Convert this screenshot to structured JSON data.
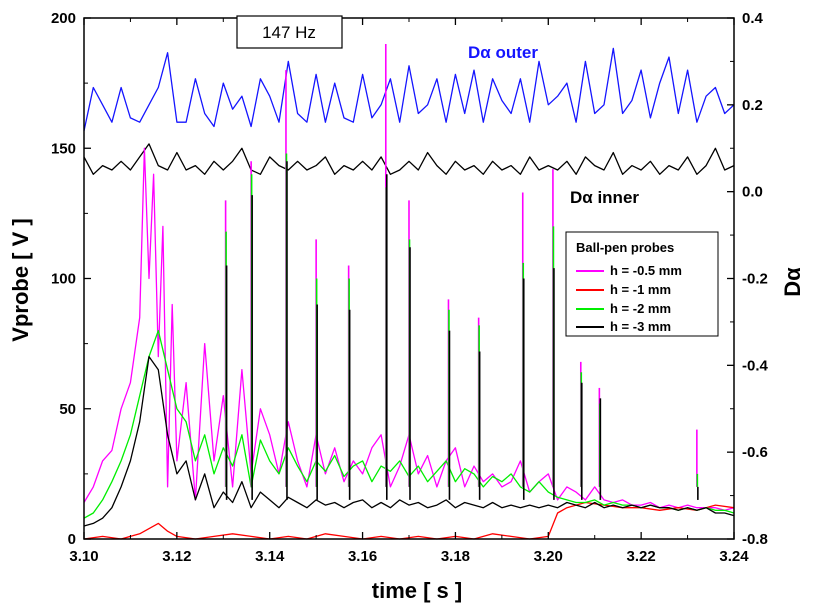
{
  "chart_data": {
    "type": "line",
    "xlabel": "time [ s ]",
    "ylabel": "Vprobe [ V ]",
    "y2label": "Dα",
    "xlim": [
      3.1,
      3.24
    ],
    "ylim": [
      0,
      200
    ],
    "y2lim": [
      -0.8,
      0.4
    ],
    "xticks": [
      "3.10",
      "3.12",
      "3.14",
      "3.16",
      "3.18",
      "3.20",
      "3.22",
      "3.24"
    ],
    "yticks": [
      "0",
      "50",
      "100",
      "150",
      "200"
    ],
    "y2ticks": [
      "-0.8",
      "-0.6",
      "-0.4",
      "-0.2",
      "0.0",
      "0.2",
      "0.4"
    ],
    "frequency_label": "147 Hz",
    "legend": {
      "title": "Ball-pen probes",
      "placement": "center-right",
      "entries": [
        "h = -0.5 mm",
        "h = -1 mm",
        "h = -2 mm",
        "h = -3 mm"
      ]
    },
    "annotations": {
      "outer": "Dα outer",
      "inner": "Dα inner"
    },
    "colors": {
      "magenta": "#ff00ff",
      "red": "#ff0000",
      "green": "#00ee00",
      "black": "#000000",
      "blue": "#1515ff"
    },
    "series": [
      {
        "name": "Dα outer",
        "axis": "right",
        "color": "#1515ff",
        "x": [
          3.1,
          3.102,
          3.104,
          3.106,
          3.108,
          3.11,
          3.112,
          3.114,
          3.116,
          3.118,
          3.12,
          3.122,
          3.124,
          3.126,
          3.128,
          3.13,
          3.132,
          3.134,
          3.136,
          3.138,
          3.14,
          3.142,
          3.144,
          3.146,
          3.148,
          3.15,
          3.152,
          3.154,
          3.156,
          3.158,
          3.16,
          3.162,
          3.164,
          3.166,
          3.168,
          3.17,
          3.172,
          3.174,
          3.176,
          3.178,
          3.18,
          3.182,
          3.184,
          3.186,
          3.188,
          3.19,
          3.192,
          3.194,
          3.196,
          3.198,
          3.2,
          3.202,
          3.204,
          3.206,
          3.208,
          3.21,
          3.212,
          3.214,
          3.216,
          3.218,
          3.22,
          3.222,
          3.224,
          3.226,
          3.228,
          3.23,
          3.232,
          3.234,
          3.236,
          3.238,
          3.24
        ],
        "y": [
          0.14,
          0.24,
          0.2,
          0.16,
          0.24,
          0.17,
          0.16,
          0.2,
          0.24,
          0.32,
          0.16,
          0.16,
          0.26,
          0.18,
          0.15,
          0.25,
          0.19,
          0.22,
          0.15,
          0.26,
          0.22,
          0.16,
          0.3,
          0.18,
          0.16,
          0.27,
          0.16,
          0.25,
          0.17,
          0.16,
          0.27,
          0.17,
          0.2,
          0.26,
          0.16,
          0.29,
          0.18,
          0.2,
          0.26,
          0.16,
          0.27,
          0.18,
          0.28,
          0.16,
          0.26,
          0.21,
          0.18,
          0.26,
          0.16,
          0.3,
          0.2,
          0.22,
          0.25,
          0.16,
          0.3,
          0.18,
          0.2,
          0.33,
          0.18,
          0.21,
          0.28,
          0.17,
          0.25,
          0.31,
          0.18,
          0.28,
          0.16,
          0.22,
          0.24,
          0.18,
          0.2
        ]
      },
      {
        "name": "Dα inner",
        "axis": "right",
        "color": "#000000",
        "x": [
          3.1,
          3.102,
          3.104,
          3.106,
          3.108,
          3.11,
          3.112,
          3.114,
          3.116,
          3.118,
          3.12,
          3.122,
          3.124,
          3.126,
          3.128,
          3.13,
          3.132,
          3.134,
          3.136,
          3.138,
          3.14,
          3.142,
          3.144,
          3.146,
          3.148,
          3.15,
          3.152,
          3.154,
          3.156,
          3.158,
          3.16,
          3.162,
          3.164,
          3.166,
          3.168,
          3.17,
          3.172,
          3.174,
          3.176,
          3.178,
          3.18,
          3.182,
          3.184,
          3.186,
          3.188,
          3.19,
          3.192,
          3.194,
          3.196,
          3.198,
          3.2,
          3.202,
          3.204,
          3.206,
          3.208,
          3.21,
          3.212,
          3.214,
          3.216,
          3.218,
          3.22,
          3.222,
          3.224,
          3.226,
          3.228,
          3.23,
          3.232,
          3.234,
          3.236,
          3.238,
          3.24
        ],
        "y": [
          0.08,
          0.04,
          0.06,
          0.05,
          0.07,
          0.05,
          0.08,
          0.11,
          0.06,
          0.05,
          0.09,
          0.05,
          0.06,
          0.04,
          0.07,
          0.05,
          0.07,
          0.1,
          0.05,
          0.04,
          0.08,
          0.06,
          0.05,
          0.07,
          0.05,
          0.06,
          0.08,
          0.04,
          0.06,
          0.05,
          0.07,
          0.05,
          0.08,
          0.04,
          0.05,
          0.07,
          0.05,
          0.09,
          0.06,
          0.04,
          0.07,
          0.05,
          0.06,
          0.04,
          0.07,
          0.05,
          0.06,
          0.04,
          0.08,
          0.05,
          0.06,
          0.05,
          0.07,
          0.04,
          0.08,
          0.06,
          0.05,
          0.09,
          0.04,
          0.06,
          0.05,
          0.07,
          0.04,
          0.06,
          0.05,
          0.08,
          0.04,
          0.06,
          0.1,
          0.05,
          0.06
        ]
      },
      {
        "name": "h = -0.5 mm",
        "axis": "left",
        "color": "#ff00ff",
        "x": [
          3.1,
          3.102,
          3.104,
          3.106,
          3.108,
          3.11,
          3.112,
          3.113,
          3.114,
          3.115,
          3.116,
          3.117,
          3.118,
          3.119,
          3.12,
          3.122,
          3.124,
          3.126,
          3.128,
          3.13,
          3.132,
          3.134,
          3.136,
          3.138,
          3.14,
          3.142,
          3.144,
          3.146,
          3.148,
          3.15,
          3.152,
          3.154,
          3.156,
          3.158,
          3.16,
          3.162,
          3.164,
          3.166,
          3.168,
          3.17,
          3.172,
          3.174,
          3.176,
          3.178,
          3.18,
          3.182,
          3.184,
          3.186,
          3.188,
          3.19,
          3.192,
          3.194,
          3.196,
          3.198,
          3.2,
          3.202,
          3.204,
          3.206,
          3.208,
          3.21,
          3.212,
          3.214,
          3.216,
          3.218,
          3.22,
          3.222,
          3.224,
          3.226,
          3.228,
          3.23,
          3.232,
          3.234,
          3.236,
          3.238,
          3.24
        ],
        "y": [
          14,
          20,
          30,
          34,
          50,
          60,
          85,
          150,
          100,
          140,
          70,
          120,
          20,
          90,
          30,
          60,
          15,
          75,
          30,
          55,
          20,
          65,
          25,
          50,
          40,
          25,
          45,
          30,
          20,
          40,
          25,
          35,
          22,
          30,
          25,
          35,
          40,
          20,
          28,
          40,
          25,
          32,
          20,
          30,
          35,
          20,
          28,
          22,
          25,
          20,
          22,
          30,
          18,
          22,
          25,
          15,
          20,
          18,
          15,
          20,
          15,
          14,
          15,
          13,
          13,
          14,
          12,
          13,
          12,
          13,
          12,
          12,
          12,
          11,
          12
        ]
      },
      {
        "name": "h = -1 mm",
        "axis": "left",
        "color": "#ff0000",
        "x": [
          3.1,
          3.104,
          3.108,
          3.112,
          3.116,
          3.118,
          3.12,
          3.124,
          3.128,
          3.132,
          3.136,
          3.14,
          3.144,
          3.148,
          3.152,
          3.156,
          3.16,
          3.164,
          3.168,
          3.172,
          3.176,
          3.18,
          3.184,
          3.188,
          3.192,
          3.196,
          3.2,
          3.202,
          3.204,
          3.208,
          3.212,
          3.216,
          3.22,
          3.224,
          3.228,
          3.232,
          3.236,
          3.24
        ],
        "y": [
          0,
          1,
          0,
          2,
          6,
          3,
          1,
          0,
          1,
          2,
          1,
          0,
          1,
          0,
          2,
          1,
          0,
          1,
          0,
          1,
          0,
          1,
          0,
          2,
          1,
          0,
          1,
          10,
          12,
          14,
          13,
          12,
          12,
          11,
          12,
          11,
          13,
          12
        ]
      },
      {
        "name": "h = -2 mm",
        "axis": "left",
        "color": "#00ee00",
        "x": [
          3.1,
          3.102,
          3.104,
          3.106,
          3.108,
          3.11,
          3.112,
          3.114,
          3.116,
          3.118,
          3.12,
          3.122,
          3.124,
          3.126,
          3.128,
          3.13,
          3.132,
          3.134,
          3.136,
          3.138,
          3.14,
          3.142,
          3.144,
          3.146,
          3.148,
          3.15,
          3.152,
          3.154,
          3.156,
          3.158,
          3.16,
          3.162,
          3.164,
          3.166,
          3.168,
          3.17,
          3.172,
          3.174,
          3.176,
          3.178,
          3.18,
          3.182,
          3.184,
          3.186,
          3.188,
          3.19,
          3.192,
          3.194,
          3.196,
          3.198,
          3.2,
          3.202,
          3.204,
          3.206,
          3.208,
          3.21,
          3.212,
          3.214,
          3.216,
          3.218,
          3.22,
          3.222,
          3.224,
          3.226,
          3.228,
          3.23,
          3.232,
          3.234,
          3.236,
          3.238,
          3.24
        ],
        "y": [
          8,
          10,
          15,
          22,
          30,
          40,
          55,
          70,
          80,
          65,
          50,
          45,
          30,
          40,
          25,
          35,
          28,
          40,
          20,
          38,
          30,
          25,
          35,
          28,
          22,
          30,
          26,
          32,
          24,
          28,
          30,
          22,
          28,
          26,
          30,
          24,
          28,
          22,
          26,
          30,
          22,
          27,
          25,
          20,
          24,
          22,
          25,
          20,
          18,
          22,
          18,
          16,
          15,
          14,
          14,
          15,
          13,
          14,
          13,
          13,
          12,
          13,
          12,
          12,
          11,
          12,
          11,
          12,
          11,
          11,
          10
        ]
      },
      {
        "name": "h = -3 mm",
        "axis": "left",
        "color": "#000000",
        "x": [
          3.1,
          3.102,
          3.104,
          3.106,
          3.108,
          3.11,
          3.112,
          3.114,
          3.116,
          3.118,
          3.12,
          3.122,
          3.124,
          3.126,
          3.128,
          3.13,
          3.132,
          3.134,
          3.136,
          3.138,
          3.14,
          3.142,
          3.144,
          3.146,
          3.148,
          3.15,
          3.152,
          3.154,
          3.156,
          3.158,
          3.16,
          3.162,
          3.164,
          3.166,
          3.168,
          3.17,
          3.172,
          3.174,
          3.176,
          3.178,
          3.18,
          3.182,
          3.184,
          3.186,
          3.188,
          3.19,
          3.192,
          3.194,
          3.196,
          3.198,
          3.2,
          3.202,
          3.204,
          3.206,
          3.208,
          3.21,
          3.212,
          3.214,
          3.216,
          3.218,
          3.22,
          3.222,
          3.224,
          3.226,
          3.228,
          3.23,
          3.232,
          3.234,
          3.236,
          3.238,
          3.24
        ],
        "y": [
          5,
          6,
          8,
          12,
          20,
          30,
          45,
          70,
          65,
          40,
          25,
          30,
          15,
          25,
          12,
          18,
          14,
          22,
          12,
          18,
          15,
          12,
          16,
          14,
          12,
          15,
          13,
          14,
          12,
          14,
          15,
          12,
          14,
          12,
          15,
          13,
          14,
          12,
          13,
          15,
          12,
          14,
          13,
          12,
          14,
          12,
          13,
          12,
          13,
          12,
          13,
          12,
          14,
          13,
          12,
          14,
          12,
          13,
          12,
          13,
          12,
          13,
          12,
          12,
          11,
          12,
          11,
          12,
          10,
          10,
          9
        ]
      }
    ],
    "spikes": [
      {
        "x": 3.1305,
        "magenta": 130,
        "green": 118,
        "black": 105
      },
      {
        "x": 3.136,
        "magenta": 145,
        "green": 140,
        "black": 132
      },
      {
        "x": 3.1435,
        "magenta": 180,
        "green": 148,
        "black": 145
      },
      {
        "x": 3.15,
        "magenta": 115,
        "green": 100,
        "black": 90
      },
      {
        "x": 3.157,
        "magenta": 105,
        "green": 100,
        "black": 88
      },
      {
        "x": 3.165,
        "magenta": 190,
        "green": 135,
        "black": 140
      },
      {
        "x": 3.17,
        "magenta": 130,
        "green": 115,
        "black": 112
      },
      {
        "x": 3.1785,
        "magenta": 92,
        "green": 88,
        "black": 80
      },
      {
        "x": 3.185,
        "magenta": 85,
        "green": 82,
        "black": 72
      },
      {
        "x": 3.1945,
        "magenta": 133,
        "green": 106,
        "black": 100
      },
      {
        "x": 3.201,
        "magenta": 142,
        "green": 120,
        "black": 104
      },
      {
        "x": 3.207,
        "magenta": 68,
        "green": 64,
        "black": 60
      },
      {
        "x": 3.211,
        "magenta": 58,
        "green": 52,
        "black": 54
      },
      {
        "x": 3.232,
        "magenta": 42,
        "green": 25,
        "black": 20
      }
    ]
  }
}
